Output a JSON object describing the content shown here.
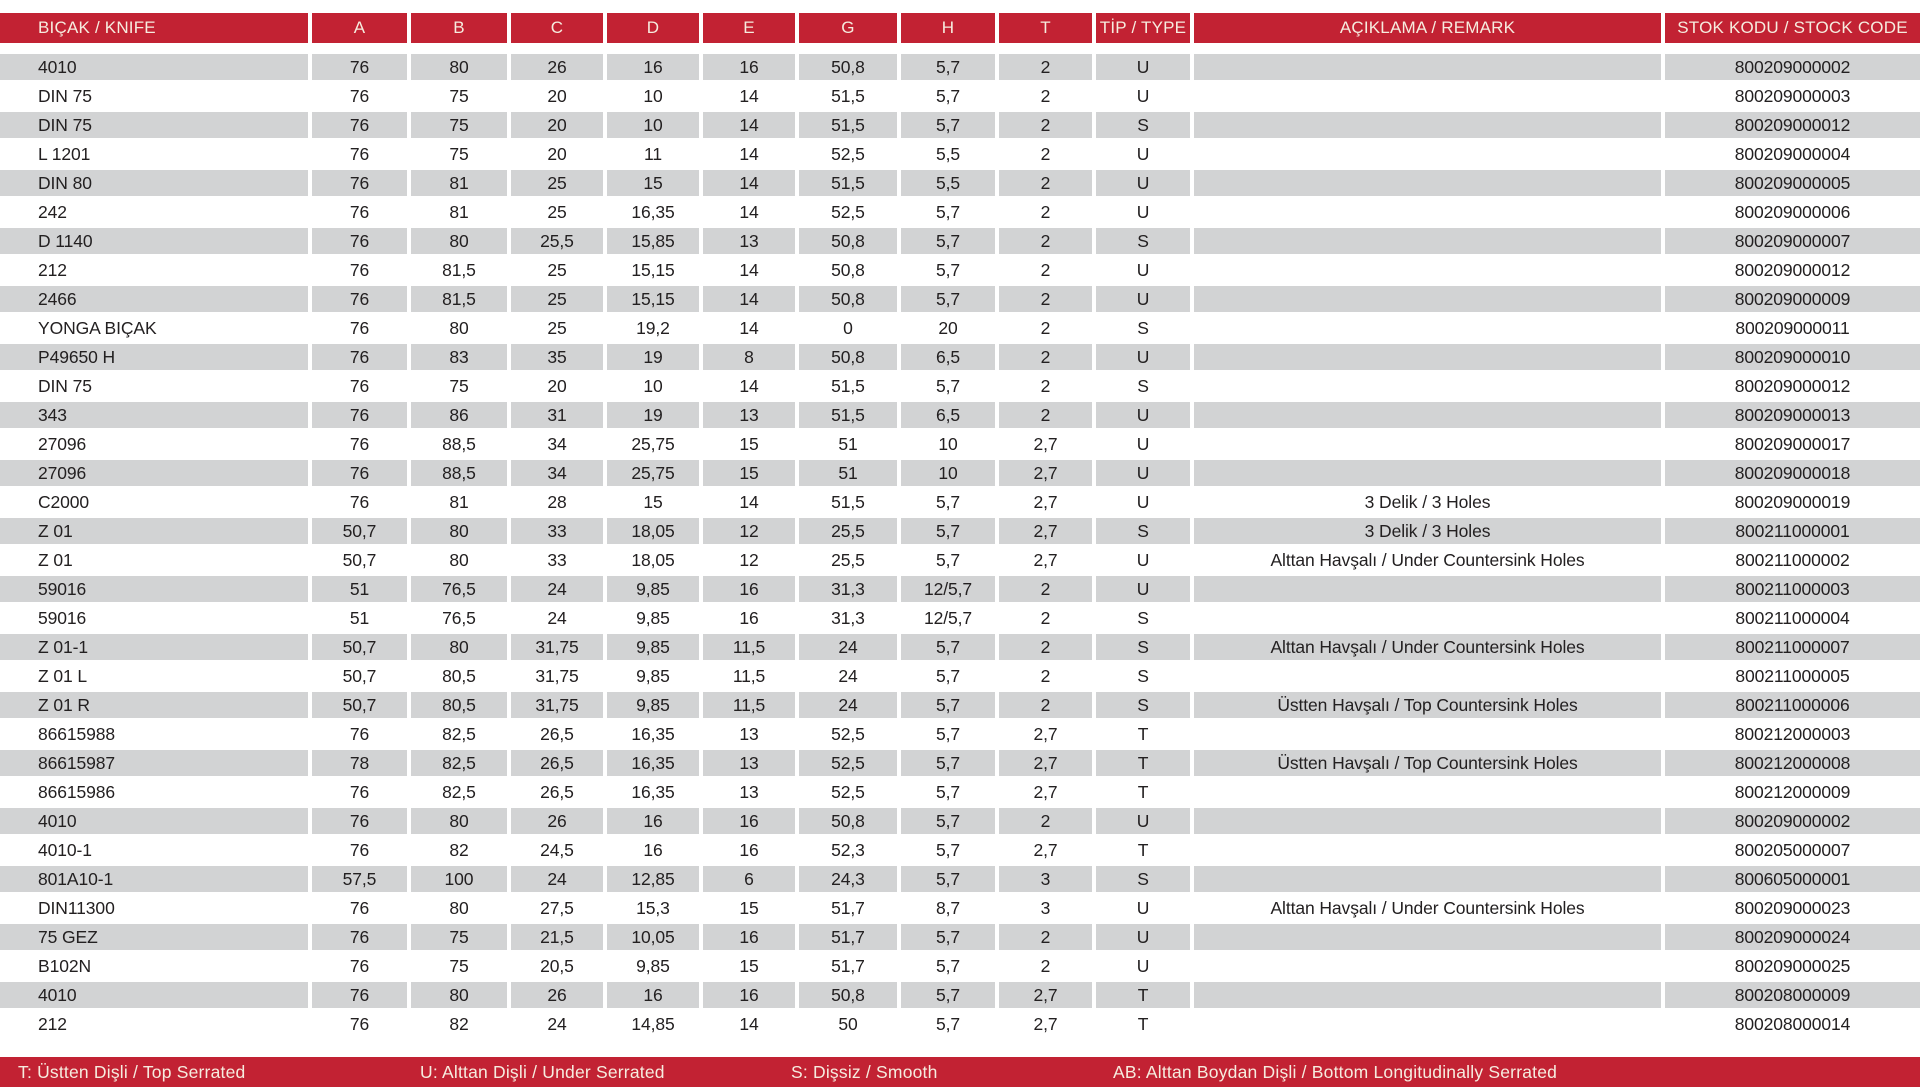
{
  "table": {
    "columns": [
      {
        "key": "knife",
        "label": "BIÇAK / KNIFE"
      },
      {
        "key": "a",
        "label": "A"
      },
      {
        "key": "b",
        "label": "B"
      },
      {
        "key": "c",
        "label": "C"
      },
      {
        "key": "d",
        "label": "D"
      },
      {
        "key": "e",
        "label": "E"
      },
      {
        "key": "g",
        "label": "G"
      },
      {
        "key": "h",
        "label": "H"
      },
      {
        "key": "t",
        "label": "T"
      },
      {
        "key": "type",
        "label": "TİP / TYPE"
      },
      {
        "key": "remark",
        "label": "AÇIKLAMA / REMARK"
      },
      {
        "key": "stock",
        "label": "STOK KODU / STOCK CODE"
      }
    ],
    "rows": [
      [
        "4010",
        "76",
        "80",
        "26",
        "16",
        "16",
        "50,8",
        "5,7",
        "2",
        "U",
        "",
        "800209000002"
      ],
      [
        "DIN 75",
        "76",
        "75",
        "20",
        "10",
        "14",
        "51,5",
        "5,7",
        "2",
        "U",
        "",
        "800209000003"
      ],
      [
        "DIN 75",
        "76",
        "75",
        "20",
        "10",
        "14",
        "51,5",
        "5,7",
        "2",
        "S",
        "",
        "800209000012"
      ],
      [
        "L 1201",
        "76",
        "75",
        "20",
        "11",
        "14",
        "52,5",
        "5,5",
        "2",
        "U",
        "",
        "800209000004"
      ],
      [
        "DIN 80",
        "76",
        "81",
        "25",
        "15",
        "14",
        "51,5",
        "5,5",
        "2",
        "U",
        "",
        "800209000005"
      ],
      [
        "242",
        "76",
        "81",
        "25",
        "16,35",
        "14",
        "52,5",
        "5,7",
        "2",
        "U",
        "",
        "800209000006"
      ],
      [
        "D 1140",
        "76",
        "80",
        "25,5",
        "15,85",
        "13",
        "50,8",
        "5,7",
        "2",
        "S",
        "",
        "800209000007"
      ],
      [
        "212",
        "76",
        "81,5",
        "25",
        "15,15",
        "14",
        "50,8",
        "5,7",
        "2",
        "U",
        "",
        "800209000012"
      ],
      [
        "2466",
        "76",
        "81,5",
        "25",
        "15,15",
        "14",
        "50,8",
        "5,7",
        "2",
        "U",
        "",
        "800209000009"
      ],
      [
        "YONGA BIÇAK",
        "76",
        "80",
        "25",
        "19,2",
        "14",
        "0",
        "20",
        "2",
        "S",
        "",
        "800209000011"
      ],
      [
        "P49650 H",
        "76",
        "83",
        "35",
        "19",
        "8",
        "50,8",
        "6,5",
        "2",
        "U",
        "",
        "800209000010"
      ],
      [
        "DIN 75",
        "76",
        "75",
        "20",
        "10",
        "14",
        "51,5",
        "5,7",
        "2",
        "S",
        "",
        "800209000012"
      ],
      [
        "343",
        "76",
        "86",
        "31",
        "19",
        "13",
        "51,5",
        "6,5",
        "2",
        "U",
        "",
        "800209000013"
      ],
      [
        "27096",
        "76",
        "88,5",
        "34",
        "25,75",
        "15",
        "51",
        "10",
        "2,7",
        "U",
        "",
        "800209000017"
      ],
      [
        "27096",
        "76",
        "88,5",
        "34",
        "25,75",
        "15",
        "51",
        "10",
        "2,7",
        "U",
        "",
        "800209000018"
      ],
      [
        "C2000",
        "76",
        "81",
        "28",
        "15",
        "14",
        "51,5",
        "5,7",
        "2,7",
        "U",
        "3 Delik / 3 Holes",
        "800209000019"
      ],
      [
        "Z 01",
        "50,7",
        "80",
        "33",
        "18,05",
        "12",
        "25,5",
        "5,7",
        "2,7",
        "S",
        "3 Delik / 3 Holes",
        "800211000001"
      ],
      [
        "Z 01",
        "50,7",
        "80",
        "33",
        "18,05",
        "12",
        "25,5",
        "5,7",
        "2,7",
        "U",
        "Alttan Havşalı / Under Countersink Holes",
        "800211000002"
      ],
      [
        "59016",
        "51",
        "76,5",
        "24",
        "9,85",
        "16",
        "31,3",
        "12/5,7",
        "2",
        "U",
        "",
        "800211000003"
      ],
      [
        "59016",
        "51",
        "76,5",
        "24",
        "9,85",
        "16",
        "31,3",
        "12/5,7",
        "2",
        "S",
        "",
        "800211000004"
      ],
      [
        "Z 01-1",
        "50,7",
        "80",
        "31,75",
        "9,85",
        "11,5",
        "24",
        "5,7",
        "2",
        "S",
        "Alttan Havşalı / Under Countersink Holes",
        "800211000007"
      ],
      [
        "Z 01 L",
        "50,7",
        "80,5",
        "31,75",
        "9,85",
        "11,5",
        "24",
        "5,7",
        "2",
        "S",
        "",
        "800211000005"
      ],
      [
        "Z 01 R",
        "50,7",
        "80,5",
        "31,75",
        "9,85",
        "11,5",
        "24",
        "5,7",
        "2",
        "S",
        "Üstten Havşalı / Top Countersink Holes",
        "800211000006"
      ],
      [
        "86615988",
        "76",
        "82,5",
        "26,5",
        "16,35",
        "13",
        "52,5",
        "5,7",
        "2,7",
        "T",
        "",
        "800212000003"
      ],
      [
        "86615987",
        "78",
        "82,5",
        "26,5",
        "16,35",
        "13",
        "52,5",
        "5,7",
        "2,7",
        "T",
        "Üstten Havşalı / Top Countersink Holes",
        "800212000008"
      ],
      [
        "86615986",
        "76",
        "82,5",
        "26,5",
        "16,35",
        "13",
        "52,5",
        "5,7",
        "2,7",
        "T",
        "",
        "800212000009"
      ],
      [
        "4010",
        "76",
        "80",
        "26",
        "16",
        "16",
        "50,8",
        "5,7",
        "2",
        "U",
        "",
        "800209000002"
      ],
      [
        "4010-1",
        "76",
        "82",
        "24,5",
        "16",
        "16",
        "52,3",
        "5,7",
        "2,7",
        "T",
        "",
        "800205000007"
      ],
      [
        "801A10-1",
        "57,5",
        "100",
        "24",
        "12,85",
        "6",
        "24,3",
        "5,7",
        "3",
        "S",
        "",
        "800605000001"
      ],
      [
        "DIN11300",
        "76",
        "80",
        "27,5",
        "15,3",
        "15",
        "51,7",
        "8,7",
        "3",
        "U",
        "Alttan Havşalı / Under Countersink Holes",
        "800209000023"
      ],
      [
        "75 GEZ",
        "76",
        "75",
        "21,5",
        "10,05",
        "16",
        "51,7",
        "5,7",
        "2",
        "U",
        "",
        "800209000024"
      ],
      [
        "B102N",
        "76",
        "75",
        "20,5",
        "9,85",
        "15",
        "51,7",
        "5,7",
        "2",
        "U",
        "",
        "800209000025"
      ],
      [
        "4010",
        "76",
        "80",
        "26",
        "16",
        "16",
        "50,8",
        "5,7",
        "2,7",
        "T",
        "",
        "800208000009"
      ],
      [
        "212",
        "76",
        "82",
        "24",
        "14,85",
        "14",
        "50",
        "5,7",
        "2,7",
        "T",
        "",
        "800208000014"
      ]
    ]
  },
  "footer": {
    "legend": [
      "T: Üstten Dişli / Top Serrated",
      "U: Alttan Dişli / Under Serrated",
      "S: Dişsiz / Smooth",
      "AB: Alttan Boydan Dişli / Bottom Longitudinally Serrated"
    ]
  },
  "colors": {
    "accent_red": "#c22233",
    "row_gray": "#d2d3d4",
    "header_text": "#f6ecdf",
    "body_text": "#232021"
  }
}
